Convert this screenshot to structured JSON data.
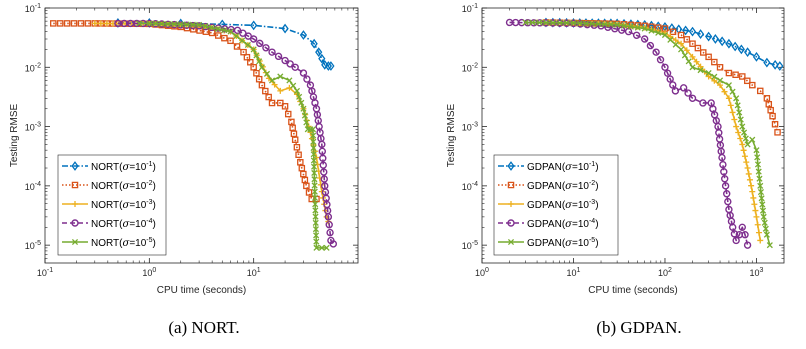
{
  "chart_data": [
    {
      "type": "line",
      "caption": "(a) NORT.",
      "xlabel": "CPU time (seconds)",
      "ylabel": "Testing RMSE",
      "xscale": "log",
      "yscale": "log",
      "xlim": [
        0.1,
        100
      ],
      "ylim": [
        5e-06,
        0.1
      ],
      "xticks": [
        {
          "value": 0.1,
          "base": "10",
          "exp": "-1"
        },
        {
          "value": 1,
          "base": "10",
          "exp": "0"
        },
        {
          "value": 10,
          "base": "10",
          "exp": "1"
        }
      ],
      "yticks": [
        {
          "value": 0.1,
          "base": "10",
          "exp": "-1"
        },
        {
          "value": 0.01,
          "base": "10",
          "exp": "-2"
        },
        {
          "value": 0.001,
          "base": "10",
          "exp": "-3"
        },
        {
          "value": 0.0001,
          "base": "10",
          "exp": "-4"
        },
        {
          "value": 1e-05,
          "base": "10",
          "exp": "-5"
        }
      ],
      "legend_position": "bottom-left",
      "series": [
        {
          "name_prefix": "NORT(",
          "sigma": "σ",
          "eq": "=10",
          "exp": "-1",
          "name_suffix": ")",
          "color": "#0072BD",
          "dash": "dashdot",
          "marker": "diamond",
          "x": [
            0.5,
            1,
            2,
            5,
            10,
            20,
            30,
            38,
            42,
            45,
            48,
            52,
            55
          ],
          "y": [
            0.056,
            0.056,
            0.055,
            0.053,
            0.051,
            0.045,
            0.035,
            0.025,
            0.018,
            0.014,
            0.011,
            0.0105,
            0.0105
          ]
        },
        {
          "name_prefix": "NORT(",
          "sigma": "σ",
          "eq": "=10",
          "exp": "-2",
          "name_suffix": ")",
          "color": "#D95319",
          "dash": "dotted",
          "marker": "square",
          "x": [
            0.12,
            0.3,
            1,
            2,
            4,
            6,
            8,
            10,
            12,
            15,
            18,
            20,
            23,
            25,
            28,
            32,
            36,
            40
          ],
          "y": [
            0.055,
            0.055,
            0.054,
            0.048,
            0.038,
            0.028,
            0.018,
            0.01,
            0.005,
            0.0025,
            0.0025,
            0.0022,
            0.0012,
            0.0006,
            0.00025,
            0.0001,
            6e-05,
            6e-05
          ]
        },
        {
          "name_prefix": "NORT(",
          "sigma": "σ",
          "eq": "=10",
          "exp": "-3",
          "name_suffix": ")",
          "color": "#EDB120",
          "dash": "solid",
          "marker": "plus",
          "x": [
            0.3,
            1,
            3,
            6,
            10,
            14,
            18,
            22,
            26,
            30,
            35,
            40,
            45,
            50,
            52
          ],
          "y": [
            0.055,
            0.054,
            0.05,
            0.04,
            0.02,
            0.0065,
            0.004,
            0.0045,
            0.0035,
            0.002,
            0.0008,
            0.0003,
            8e-05,
            3e-05,
            2.5e-05
          ]
        },
        {
          "name_prefix": "NORT(",
          "sigma": "σ",
          "eq": "=10",
          "exp": "-4",
          "name_suffix": ")",
          "color": "#7E2F8E",
          "dash": "dashed",
          "marker": "circle",
          "x": [
            0.5,
            1,
            3,
            7,
            10,
            15,
            20,
            25,
            30,
            35,
            40,
            45,
            48,
            52,
            55,
            58
          ],
          "y": [
            0.055,
            0.055,
            0.05,
            0.042,
            0.03,
            0.018,
            0.013,
            0.01,
            0.008,
            0.005,
            0.002,
            0.0005,
            0.0001,
            3e-05,
            1.2e-05,
            1.05e-05
          ]
        },
        {
          "name_prefix": "NORT(",
          "sigma": "σ",
          "eq": "=10",
          "exp": "-5",
          "name_suffix": ")",
          "color": "#77AC30",
          "dash": "solid",
          "marker": "x",
          "x": [
            0.8,
            1,
            3,
            6,
            10,
            12,
            15,
            18,
            22,
            26,
            30,
            33,
            35,
            37,
            40,
            45,
            50
          ],
          "y": [
            0.055,
            0.055,
            0.052,
            0.04,
            0.02,
            0.01,
            0.006,
            0.007,
            0.006,
            0.004,
            0.002,
            0.0009,
            0.0009,
            0.0009,
            9e-06,
            9e-06,
            9e-06
          ]
        }
      ]
    },
    {
      "type": "line",
      "caption": "(b) GDPAN.",
      "xlabel": "CPU time (seconds)",
      "ylabel": "Testing RMSE",
      "xscale": "log",
      "yscale": "log",
      "xlim": [
        1,
        2000
      ],
      "ylim": [
        5e-06,
        0.1
      ],
      "xticks": [
        {
          "value": 1,
          "base": "10",
          "exp": "0"
        },
        {
          "value": 10,
          "base": "10",
          "exp": "1"
        },
        {
          "value": 100,
          "base": "10",
          "exp": "2"
        },
        {
          "value": 1000,
          "base": "10",
          "exp": "3"
        }
      ],
      "yticks": [
        {
          "value": 0.1,
          "base": "10",
          "exp": "-1"
        },
        {
          "value": 0.01,
          "base": "10",
          "exp": "-2"
        },
        {
          "value": 0.001,
          "base": "10",
          "exp": "-3"
        },
        {
          "value": 0.0001,
          "base": "10",
          "exp": "-4"
        },
        {
          "value": 1e-05,
          "base": "10",
          "exp": "-5"
        }
      ],
      "legend_position": "bottom-left",
      "series": [
        {
          "name_prefix": "GDPAN(",
          "sigma": "σ",
          "eq": "=10",
          "exp": "-1",
          "name_suffix": ")",
          "color": "#0072BD",
          "dash": "dashdot",
          "marker": "diamond",
          "x": [
            5,
            10,
            30,
            60,
            100,
            200,
            300,
            500,
            800,
            1000,
            1300,
            1600,
            1800
          ],
          "y": [
            0.057,
            0.056,
            0.055,
            0.052,
            0.048,
            0.04,
            0.033,
            0.025,
            0.018,
            0.015,
            0.012,
            0.011,
            0.0105
          ]
        },
        {
          "name_prefix": "GDPAN(",
          "sigma": "σ",
          "eq": "=10",
          "exp": "-2",
          "name_suffix": ")",
          "color": "#D95319",
          "dash": "dotted",
          "marker": "square",
          "x": [
            5,
            10,
            30,
            60,
            100,
            150,
            200,
            300,
            400,
            500,
            700,
            900,
            1100,
            1300,
            1500,
            1700
          ],
          "y": [
            0.057,
            0.056,
            0.054,
            0.05,
            0.045,
            0.035,
            0.025,
            0.015,
            0.01,
            0.008,
            0.007,
            0.005,
            0.004,
            0.003,
            0.0015,
            0.0008
          ]
        },
        {
          "name_prefix": "GDPAN(",
          "sigma": "σ",
          "eq": "=10",
          "exp": "-3",
          "name_suffix": ")",
          "color": "#EDB120",
          "dash": "solid",
          "marker": "plus",
          "x": [
            4,
            10,
            30,
            60,
            100,
            150,
            200,
            300,
            400,
            500,
            600,
            700,
            800,
            900,
            1000,
            1100
          ],
          "y": [
            0.057,
            0.056,
            0.053,
            0.047,
            0.038,
            0.025,
            0.015,
            0.007,
            0.005,
            0.003,
            0.001,
            0.0005,
            0.0002,
            8e-05,
            3e-05,
            1.2e-05
          ]
        },
        {
          "name_prefix": "GDPAN(",
          "sigma": "σ",
          "eq": "=10",
          "exp": "-4",
          "name_suffix": ")",
          "color": "#7E2F8E",
          "dash": "dashed",
          "marker": "circle",
          "x": [
            2,
            5,
            10,
            20,
            40,
            60,
            80,
            100,
            130,
            160,
            200,
            260,
            320,
            380,
            420,
            460,
            500,
            550,
            600,
            650,
            700,
            750,
            800
          ],
          "y": [
            0.057,
            0.056,
            0.055,
            0.05,
            0.04,
            0.03,
            0.018,
            0.01,
            0.004,
            0.0045,
            0.003,
            0.0025,
            0.0025,
            0.001,
            0.0003,
            0.0001,
            4e-05,
            2e-05,
            1.2e-05,
            1.5e-05,
            2e-05,
            1.5e-05,
            1e-05
          ]
        },
        {
          "name_prefix": "GDPAN(",
          "sigma": "σ",
          "eq": "=10",
          "exp": "-5",
          "name_suffix": ")",
          "color": "#77AC30",
          "dash": "solid",
          "marker": "x",
          "x": [
            3,
            10,
            30,
            60,
            100,
            150,
            200,
            300,
            400,
            500,
            600,
            700,
            800,
            900,
            1000,
            1100,
            1200,
            1300,
            1400
          ],
          "y": [
            0.057,
            0.056,
            0.052,
            0.045,
            0.035,
            0.02,
            0.01,
            0.008,
            0.006,
            0.005,
            0.003,
            0.001,
            0.0005,
            0.0006,
            0.0004,
            0.0001,
            3e-05,
            1.5e-05,
            1e-05
          ]
        }
      ]
    }
  ]
}
